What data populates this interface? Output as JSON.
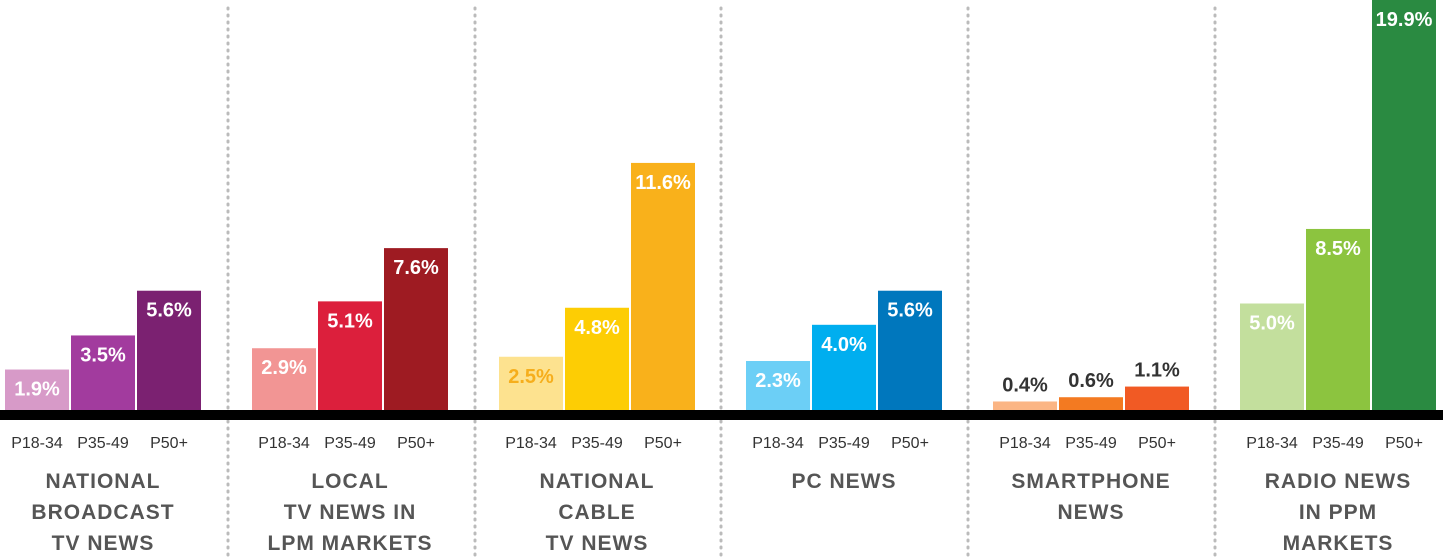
{
  "chart_data": {
    "type": "bar",
    "categories": [
      "P18-34",
      "P35-49",
      "P50+"
    ],
    "groups": [
      {
        "name_lines": [
          "NATIONAL",
          "BROADCAST",
          "TV NEWS"
        ],
        "values": [
          1.9,
          3.5,
          5.6
        ],
        "value_labels": [
          "1.9%",
          "3.5%",
          "5.6%"
        ],
        "colors": [
          "#d79ac8",
          "#a23b9e",
          "#7b2171"
        ],
        "label_colors": [
          "#ffffff",
          "#ffffff",
          "#ffffff"
        ]
      },
      {
        "name_lines": [
          "LOCAL",
          "TV NEWS IN",
          "LPM MARKETS"
        ],
        "values": [
          2.9,
          5.1,
          7.6
        ],
        "value_labels": [
          "2.9%",
          "5.1%",
          "7.6%"
        ],
        "colors": [
          "#f29594",
          "#dc1f3c",
          "#9e1b22"
        ],
        "label_colors": [
          "#ffffff",
          "#ffffff",
          "#ffffff"
        ]
      },
      {
        "name_lines": [
          "NATIONAL",
          "CABLE",
          "TV NEWS"
        ],
        "values": [
          2.5,
          4.8,
          11.6
        ],
        "value_labels": [
          "2.5%",
          "4.8%",
          "11.6%"
        ],
        "colors": [
          "#fde28f",
          "#fdcd04",
          "#f9b11b"
        ],
        "label_colors": [
          "#f6ae1c",
          "#ffffff",
          "#ffffff"
        ]
      },
      {
        "name_lines": [
          "PC NEWS"
        ],
        "values": [
          2.3,
          4.0,
          5.6
        ],
        "value_labels": [
          "2.3%",
          "4.0%",
          "5.6%"
        ],
        "colors": [
          "#6ccff6",
          "#00aeef",
          "#0077bd"
        ],
        "label_colors": [
          "#ffffff",
          "#ffffff",
          "#ffffff"
        ]
      },
      {
        "name_lines": [
          "SMARTPHONE",
          "NEWS"
        ],
        "values": [
          0.4,
          0.6,
          1.1
        ],
        "value_labels": [
          "0.4%",
          "0.6%",
          "1.1%"
        ],
        "colors": [
          "#fbb584",
          "#f37a21",
          "#f15a24"
        ],
        "label_colors": [
          "#333333",
          "#333333",
          "#333333"
        ]
      },
      {
        "name_lines": [
          "RADIO NEWS",
          "IN PPM",
          "MARKETS"
        ],
        "values": [
          5.0,
          8.5,
          19.9
        ],
        "value_labels": [
          "5.0%",
          "8.5%",
          "19.9%"
        ],
        "colors": [
          "#c3df9d",
          "#8cc43f",
          "#2a8a41"
        ],
        "label_colors": [
          "#ffffff",
          "#ffffff",
          "#ffffff"
        ]
      }
    ]
  }
}
